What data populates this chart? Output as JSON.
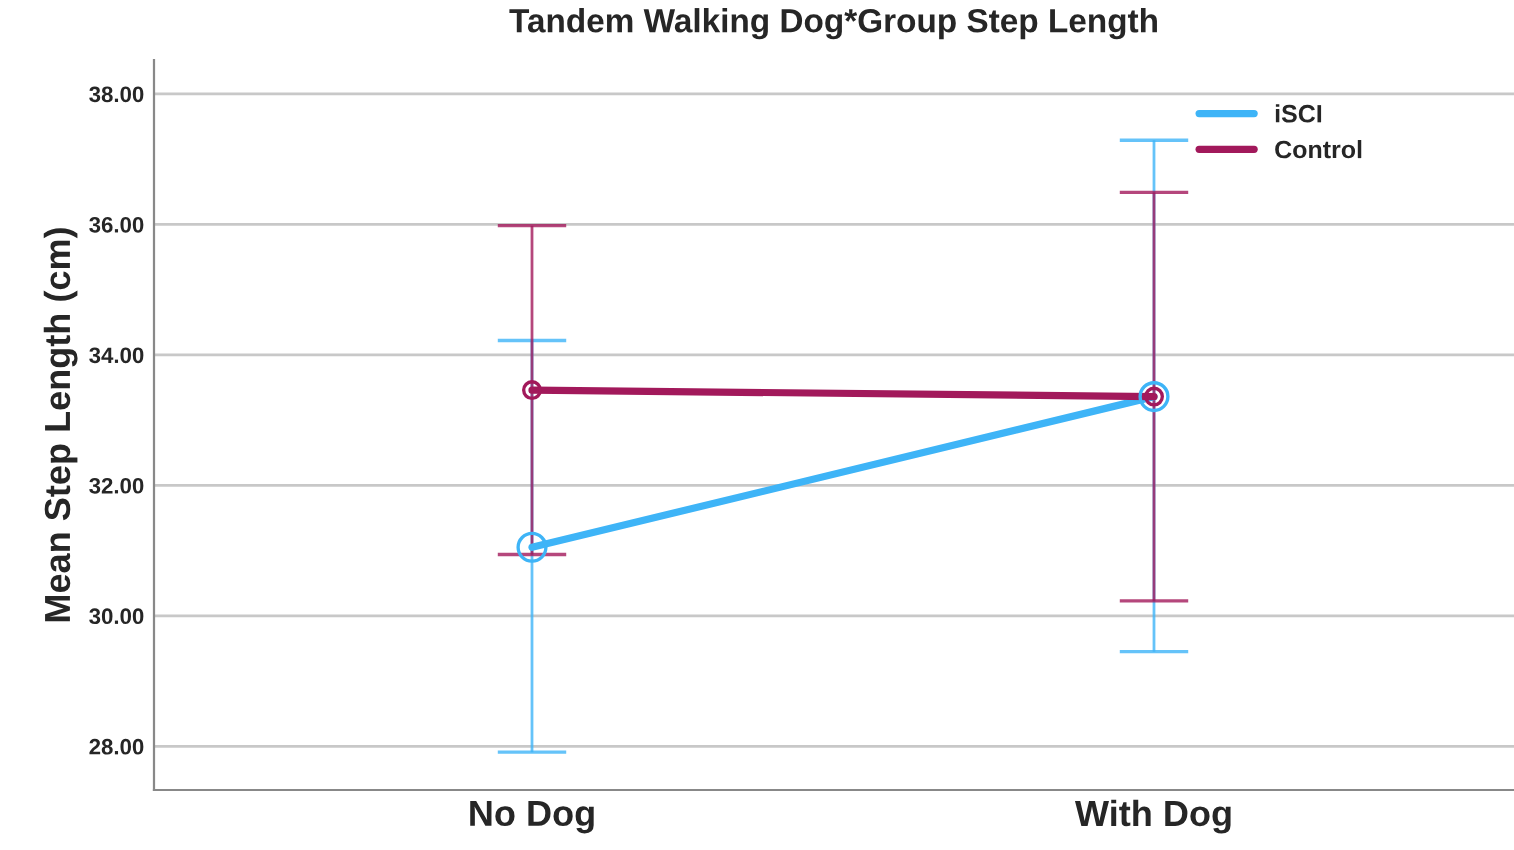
{
  "chart_data": {
    "type": "line",
    "title": "Tandem Walking Dog*Group Step Length",
    "ylabel": "Mean Step Length (cm)",
    "categories": [
      "No Dog",
      "With Dog"
    ],
    "series": [
      {
        "name": "iSCI",
        "color": "#3eb4f7",
        "values": [
          31.05,
          33.36
        ],
        "errors": [
          [
            27.91,
            34.22
          ],
          [
            29.45,
            37.29
          ]
        ]
      },
      {
        "name": "Control",
        "color": "#a2195b",
        "values": [
          33.46,
          33.36
        ],
        "errors": [
          [
            30.94,
            35.98
          ],
          [
            30.23,
            36.49
          ]
        ]
      }
    ],
    "ylim": [
      27.33,
      38.52
    ],
    "yticks": [
      {
        "value": 28,
        "label": "28.00"
      },
      {
        "value": 30,
        "label": "30.00"
      },
      {
        "value": 32,
        "label": "32.00"
      },
      {
        "value": 34,
        "label": "34.00"
      },
      {
        "value": 36,
        "label": "36.00"
      },
      {
        "value": 38,
        "label": "38.00"
      }
    ],
    "grid": "y",
    "legend": "top right",
    "marker": "circle",
    "line_style": "solid"
  }
}
